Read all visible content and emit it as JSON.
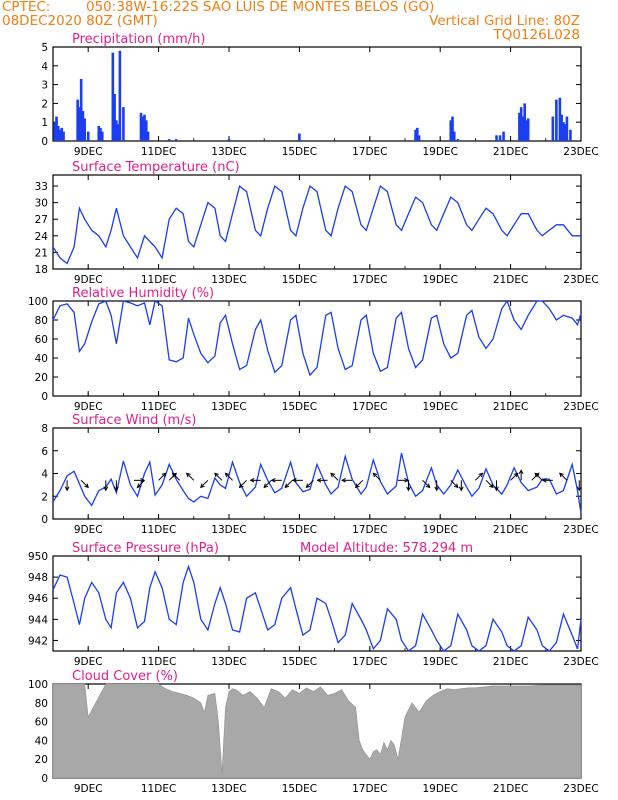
{
  "header": {
    "line1_left": "CPTEC:",
    "line1_center": "050:38W-16:22S  SAO LUIS DE MONTES BELOS (GO)",
    "line2_left": "08DEC2020 80Z (GMT)",
    "line2_right": "Vertical Grid Line: 80Z",
    "line3_right": "TQ0126L028"
  },
  "colors": {
    "header": "#f07f14",
    "titles": "#e0208c",
    "series": "#1a3ef0",
    "cloud": "#a8a8a8",
    "axis": "#000000"
  },
  "x_ticks": [
    "9DEC",
    "11DEC",
    "13DEC",
    "15DEC",
    "17DEC",
    "19DEC",
    "21DEC",
    "23DEC"
  ],
  "x_tick_days": [
    1,
    3,
    5,
    7,
    9,
    11,
    13,
    15
  ],
  "chart_data": [
    {
      "type": "bar",
      "title": "Precipitation (mm/h)",
      "ylim": [
        0,
        5
      ],
      "yticks": [
        0,
        1,
        2,
        3,
        4,
        5
      ],
      "x_days": [
        0.05,
        0.1,
        0.15,
        0.2,
        0.25,
        0.3,
        0.7,
        0.75,
        0.8,
        0.85,
        0.9,
        1.0,
        1.3,
        1.35,
        1.4,
        1.7,
        1.75,
        1.8,
        1.85,
        1.9,
        2.0,
        2.5,
        2.55,
        2.6,
        2.65,
        2.7,
        3.3,
        3.5,
        5.0,
        7.0,
        10.3,
        10.35,
        10.4,
        11.3,
        11.35,
        11.4,
        11.5,
        12.6,
        12.7,
        12.8,
        13.25,
        13.3,
        13.35,
        13.4,
        13.45,
        13.5,
        14.2,
        14.3,
        14.4,
        14.45,
        14.5,
        14.55,
        14.6,
        14.7
      ],
      "values": [
        1.0,
        1.3,
        0.8,
        0.6,
        0.7,
        0.5,
        2.2,
        1.8,
        3.3,
        1.6,
        1.2,
        0.5,
        0.8,
        0.7,
        0.5,
        4.7,
        2.5,
        1.1,
        0.9,
        4.8,
        1.8,
        1.5,
        1.3,
        1.4,
        1.1,
        0.5,
        0.1,
        0.1,
        0.1,
        0.4,
        0.6,
        0.7,
        0.3,
        1.1,
        1.3,
        0.5,
        0.1,
        0.3,
        0.3,
        0.5,
        1.5,
        1.8,
        1.3,
        2.0,
        1.1,
        1.2,
        1.3,
        2.2,
        2.3,
        1.4,
        1.0,
        0.9,
        1.3,
        0.6
      ]
    },
    {
      "type": "line",
      "title": "Surface Temperature (nC)",
      "ylim": [
        18,
        35
      ],
      "yticks": [
        18,
        21,
        24,
        27,
        30,
        33
      ],
      "x_days": [
        0,
        0.2,
        0.4,
        0.6,
        0.75,
        0.9,
        1.1,
        1.3,
        1.5,
        1.65,
        1.8,
        2.0,
        2.2,
        2.4,
        2.6,
        2.75,
        2.9,
        3.1,
        3.3,
        3.5,
        3.7,
        3.85,
        4.0,
        4.2,
        4.4,
        4.6,
        4.75,
        4.9,
        5.1,
        5.3,
        5.5,
        5.75,
        5.9,
        6.1,
        6.3,
        6.5,
        6.75,
        6.9,
        7.1,
        7.3,
        7.5,
        7.75,
        7.9,
        8.1,
        8.3,
        8.5,
        8.75,
        8.9,
        9.1,
        9.3,
        9.5,
        9.75,
        9.9,
        10.1,
        10.3,
        10.5,
        10.75,
        10.9,
        11.1,
        11.3,
        11.5,
        11.75,
        11.9,
        12.1,
        12.3,
        12.5,
        12.75,
        12.9,
        13.1,
        13.3,
        13.5,
        13.75,
        13.9,
        14.1,
        14.3,
        14.5,
        14.75,
        14.9,
        15.0
      ],
      "values": [
        22,
        20,
        19,
        22,
        29,
        27,
        25,
        24,
        22,
        25,
        29,
        24,
        22,
        20,
        24,
        23,
        22,
        20,
        27,
        29,
        28,
        23,
        22,
        26,
        30,
        29,
        24,
        23,
        28,
        33,
        32,
        25,
        24,
        29,
        33,
        32,
        25,
        24,
        29,
        33,
        32,
        25,
        24,
        29,
        33,
        32,
        26,
        25,
        29,
        33,
        32,
        26,
        25,
        28,
        31,
        30,
        26,
        25,
        28,
        31,
        30,
        26,
        25,
        27,
        29,
        28,
        25,
        24,
        26,
        28,
        28,
        25,
        24,
        25,
        26,
        26,
        24,
        24,
        24
      ]
    },
    {
      "type": "line",
      "title": "Relative Humidity (%)",
      "ylim": [
        0,
        100
      ],
      "yticks": [
        0,
        20,
        40,
        60,
        80,
        100
      ],
      "x_days": [
        0,
        0.2,
        0.4,
        0.6,
        0.75,
        0.9,
        1.1,
        1.3,
        1.5,
        1.65,
        1.8,
        2.0,
        2.2,
        2.4,
        2.6,
        2.75,
        2.9,
        3.1,
        3.3,
        3.5,
        3.7,
        3.85,
        4.0,
        4.2,
        4.4,
        4.6,
        4.75,
        4.9,
        5.1,
        5.3,
        5.5,
        5.75,
        5.9,
        6.1,
        6.3,
        6.5,
        6.75,
        6.9,
        7.1,
        7.3,
        7.5,
        7.75,
        7.9,
        8.1,
        8.3,
        8.5,
        8.75,
        8.9,
        9.1,
        9.3,
        9.5,
        9.75,
        9.9,
        10.1,
        10.3,
        10.5,
        10.75,
        10.9,
        11.1,
        11.3,
        11.5,
        11.75,
        11.9,
        12.1,
        12.3,
        12.5,
        12.75,
        12.9,
        13.1,
        13.3,
        13.5,
        13.75,
        13.9,
        14.1,
        14.3,
        14.5,
        14.75,
        14.9,
        15.0
      ],
      "values": [
        80,
        95,
        97,
        88,
        47,
        55,
        78,
        97,
        100,
        85,
        55,
        100,
        98,
        95,
        98,
        75,
        100,
        95,
        38,
        36,
        40,
        82,
        65,
        45,
        35,
        42,
        77,
        85,
        55,
        28,
        32,
        70,
        80,
        48,
        25,
        32,
        80,
        85,
        45,
        22,
        30,
        85,
        88,
        50,
        28,
        32,
        80,
        85,
        45,
        26,
        30,
        82,
        88,
        50,
        30,
        38,
        82,
        85,
        55,
        40,
        45,
        85,
        90,
        62,
        50,
        60,
        92,
        100,
        80,
        70,
        85,
        100,
        100,
        92,
        80,
        85,
        82,
        75,
        87
      ]
    },
    {
      "type": "line",
      "title": "Surface Wind (m/s)",
      "ylim": [
        0,
        8
      ],
      "yticks": [
        0,
        2,
        4,
        6,
        8
      ],
      "x_days": [
        0,
        0.2,
        0.4,
        0.6,
        0.75,
        0.9,
        1.1,
        1.3,
        1.5,
        1.65,
        1.8,
        2.0,
        2.2,
        2.4,
        2.6,
        2.75,
        2.9,
        3.1,
        3.3,
        3.5,
        3.7,
        3.85,
        4.0,
        4.2,
        4.4,
        4.6,
        4.75,
        4.9,
        5.1,
        5.3,
        5.5,
        5.75,
        5.9,
        6.1,
        6.3,
        6.5,
        6.75,
        6.9,
        7.1,
        7.3,
        7.5,
        7.75,
        7.9,
        8.1,
        8.3,
        8.5,
        8.75,
        8.9,
        9.1,
        9.3,
        9.5,
        9.75,
        9.9,
        10.1,
        10.3,
        10.5,
        10.75,
        10.9,
        11.1,
        11.3,
        11.5,
        11.75,
        11.9,
        12.1,
        12.3,
        12.5,
        12.75,
        12.9,
        13.1,
        13.3,
        13.5,
        13.75,
        13.9,
        14.1,
        14.3,
        14.5,
        14.75,
        14.9,
        15.0
      ],
      "values": [
        1.5,
        2.5,
        3.8,
        4.2,
        3.1,
        2.0,
        1.2,
        2.5,
        2.8,
        3.5,
        2.3,
        5.1,
        3.0,
        2.0,
        4.0,
        5.0,
        2.1,
        3.0,
        4.8,
        3.5,
        2.5,
        1.8,
        1.5,
        2.0,
        1.8,
        3.6,
        3.0,
        2.7,
        5.0,
        3.2,
        2.0,
        2.8,
        4.8,
        3.4,
        2.3,
        2.7,
        5.0,
        3.2,
        2.4,
        2.6,
        4.8,
        3.0,
        2.2,
        2.8,
        5.5,
        3.5,
        2.2,
        2.8,
        5.2,
        3.3,
        2.2,
        2.9,
        5.8,
        3.2,
        2.0,
        2.5,
        4.5,
        3.0,
        2.2,
        3.0,
        4.3,
        2.8,
        2.0,
        2.7,
        4.4,
        3.0,
        2.2,
        3.0,
        4.5,
        3.2,
        2.5,
        2.8,
        3.5,
        3.5,
        2.2,
        2.5,
        4.8,
        2.5,
        0.5
      ],
      "arrows": [
        {
          "day": 0.4,
          "dir": "S"
        },
        {
          "day": 0.8,
          "dir": "SE"
        },
        {
          "day": 1.5,
          "dir": "S"
        },
        {
          "day": 1.8,
          "dir": "S"
        },
        {
          "day": 2.3,
          "dir": "E"
        },
        {
          "day": 2.6,
          "dir": "SW"
        },
        {
          "day": 3.0,
          "dir": "NE"
        },
        {
          "day": 3.3,
          "dir": "NE"
        },
        {
          "day": 3.6,
          "dir": "NW"
        },
        {
          "day": 4.0,
          "dir": "NW"
        },
        {
          "day": 4.4,
          "dir": "SW"
        },
        {
          "day": 4.8,
          "dir": "NW"
        },
        {
          "day": 5.1,
          "dir": "NW"
        },
        {
          "day": 5.5,
          "dir": "SW"
        },
        {
          "day": 5.9,
          "dir": "W"
        },
        {
          "day": 6.2,
          "dir": "SW"
        },
        {
          "day": 6.5,
          "dir": "W"
        },
        {
          "day": 6.8,
          "dir": "SW"
        },
        {
          "day": 7.1,
          "dir": "W"
        },
        {
          "day": 7.4,
          "dir": "SW"
        },
        {
          "day": 7.8,
          "dir": "W"
        },
        {
          "day": 8.1,
          "dir": "NW"
        },
        {
          "day": 8.5,
          "dir": "W"
        },
        {
          "day": 8.8,
          "dir": "SW"
        },
        {
          "day": 9.3,
          "dir": "NW"
        },
        {
          "day": 9.8,
          "dir": "E"
        },
        {
          "day": 10.1,
          "dir": "S"
        },
        {
          "day": 10.5,
          "dir": "SE"
        },
        {
          "day": 10.9,
          "dir": "S"
        },
        {
          "day": 11.3,
          "dir": "SE"
        },
        {
          "day": 11.6,
          "dir": "S"
        },
        {
          "day": 12.0,
          "dir": "NE"
        },
        {
          "day": 12.3,
          "dir": "SE"
        },
        {
          "day": 12.6,
          "dir": "S"
        },
        {
          "day": 13.0,
          "dir": "NE"
        },
        {
          "day": 13.3,
          "dir": "N"
        },
        {
          "day": 13.6,
          "dir": "NE"
        },
        {
          "day": 13.9,
          "dir": "NW"
        },
        {
          "day": 14.2,
          "dir": "W"
        },
        {
          "day": 14.6,
          "dir": "NW"
        },
        {
          "day": 14.95,
          "dir": "S"
        }
      ]
    },
    {
      "type": "line",
      "title": "Surface Pressure (hPa)",
      "annotation": "Model Altitude: 578.294 m",
      "ylim": [
        941,
        950
      ],
      "yticks": [
        942,
        944,
        946,
        948,
        950
      ],
      "x_days": [
        0,
        0.2,
        0.4,
        0.6,
        0.75,
        0.9,
        1.1,
        1.3,
        1.5,
        1.65,
        1.8,
        2.0,
        2.2,
        2.4,
        2.6,
        2.75,
        2.9,
        3.1,
        3.3,
        3.5,
        3.7,
        3.85,
        4.0,
        4.2,
        4.4,
        4.6,
        4.75,
        4.9,
        5.1,
        5.3,
        5.5,
        5.75,
        5.9,
        6.1,
        6.3,
        6.5,
        6.75,
        6.9,
        7.1,
        7.3,
        7.5,
        7.75,
        7.9,
        8.1,
        8.3,
        8.5,
        8.75,
        8.9,
        9.1,
        9.3,
        9.5,
        9.75,
        9.9,
        10.1,
        10.3,
        10.5,
        10.75,
        10.9,
        11.1,
        11.3,
        11.5,
        11.75,
        11.9,
        12.1,
        12.3,
        12.5,
        12.75,
        12.9,
        13.1,
        13.3,
        13.5,
        13.75,
        13.9,
        14.1,
        14.3,
        14.5,
        14.75,
        14.9,
        15.0
      ],
      "values": [
        946.8,
        948.2,
        948.0,
        945.5,
        943.5,
        946.0,
        947.5,
        946.5,
        944.0,
        943.2,
        946.5,
        947.5,
        946.0,
        943.2,
        943.8,
        947.0,
        948.5,
        947.0,
        944.0,
        943.5,
        947.5,
        949.0,
        947.5,
        944.0,
        943.0,
        945.5,
        947.0,
        945.5,
        943.0,
        942.8,
        946.0,
        946.5,
        945.0,
        943.0,
        943.5,
        946.0,
        947.0,
        945.0,
        942.5,
        943.0,
        946.0,
        945.5,
        944.0,
        941.8,
        942.5,
        945.5,
        944.0,
        943.0,
        941.2,
        942.0,
        945.0,
        944.0,
        942.0,
        940.8,
        941.5,
        944.5,
        943.0,
        942.0,
        940.8,
        941.5,
        944.5,
        943.0,
        941.5,
        940.8,
        941.5,
        944.0,
        942.8,
        941.5,
        940.8,
        941.5,
        944.2,
        943.0,
        941.5,
        941.0,
        941.8,
        944.5,
        942.5,
        941.2,
        944.0
      ]
    },
    {
      "type": "area",
      "title": "Cloud Cover (%)",
      "ylim": [
        0,
        100
      ],
      "yticks": [
        0,
        20,
        40,
        60,
        80,
        100
      ],
      "x_days": [
        0,
        0.5,
        0.9,
        1.0,
        1.5,
        1.7,
        1.8,
        2.0,
        3.0,
        3.2,
        3.4,
        3.6,
        3.8,
        4.0,
        4.2,
        4.3,
        4.4,
        4.6,
        4.7,
        4.8,
        4.9,
        5.0,
        5.1,
        5.2,
        5.4,
        5.6,
        5.8,
        6.0,
        6.2,
        6.4,
        6.6,
        6.8,
        7.0,
        7.2,
        7.4,
        7.6,
        7.8,
        8.0,
        8.2,
        8.4,
        8.6,
        8.7,
        8.8,
        8.9,
        9.0,
        9.1,
        9.2,
        9.3,
        9.4,
        9.5,
        9.6,
        9.7,
        9.8,
        10.0,
        10.2,
        10.4,
        10.6,
        10.8,
        11.0,
        11.2,
        11.4,
        11.6,
        11.8,
        12.0,
        12.5,
        13.0,
        13.5,
        14.0,
        14.5,
        15.0
      ],
      "values": [
        100,
        100,
        100,
        65,
        100,
        100,
        100,
        100,
        100,
        95,
        92,
        90,
        88,
        85,
        80,
        70,
        88,
        90,
        60,
        5,
        75,
        92,
        95,
        94,
        88,
        92,
        85,
        75,
        95,
        92,
        85,
        94,
        90,
        96,
        92,
        97,
        88,
        90,
        94,
        82,
        75,
        40,
        30,
        25,
        20,
        28,
        30,
        25,
        38,
        30,
        40,
        35,
        20,
        65,
        80,
        70,
        82,
        88,
        92,
        95,
        94,
        95,
        96,
        96,
        98,
        98,
        98,
        99,
        99,
        99
      ]
    }
  ]
}
